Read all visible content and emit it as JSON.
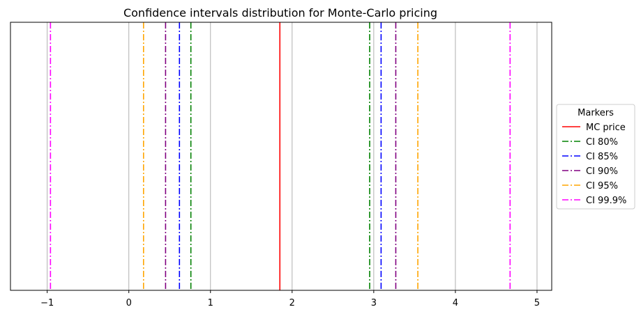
{
  "chart_data": {
    "type": "vertical-lines",
    "title": "Confidence intervals distribution for Monte-Carlo pricing",
    "xlabel": "",
    "ylabel": "",
    "xlim": [
      -1.45,
      5.18
    ],
    "xticks": [
      -1,
      0,
      1,
      2,
      3,
      4,
      5
    ],
    "xtick_labels": [
      "−1",
      "0",
      "1",
      "2",
      "3",
      "4",
      "5"
    ],
    "grid": "x",
    "grid_color": "#b0b0b0",
    "legend": {
      "title": "Markers",
      "placement": "center-right, outside plot"
    },
    "series": [
      {
        "name": "MC price",
        "color": "#ff0000",
        "style": "solid",
        "values": [
          1.85
        ]
      },
      {
        "name": "CI 80%",
        "color": "#008000",
        "style": "dashdot",
        "values": [
          0.76,
          2.95
        ]
      },
      {
        "name": "CI 85%",
        "color": "#0000ff",
        "style": "dashdot",
        "values": [
          0.62,
          3.09
        ]
      },
      {
        "name": "CI 90%",
        "color": "#800080",
        "style": "dashdot",
        "values": [
          0.45,
          3.27
        ]
      },
      {
        "name": "CI 95%",
        "color": "#ffa500",
        "style": "dashdot",
        "values": [
          0.18,
          3.54
        ]
      },
      {
        "name": "CI 99.9%",
        "color": "#ff00ff",
        "style": "dashdot",
        "values": [
          -0.96,
          4.67
        ]
      }
    ]
  }
}
